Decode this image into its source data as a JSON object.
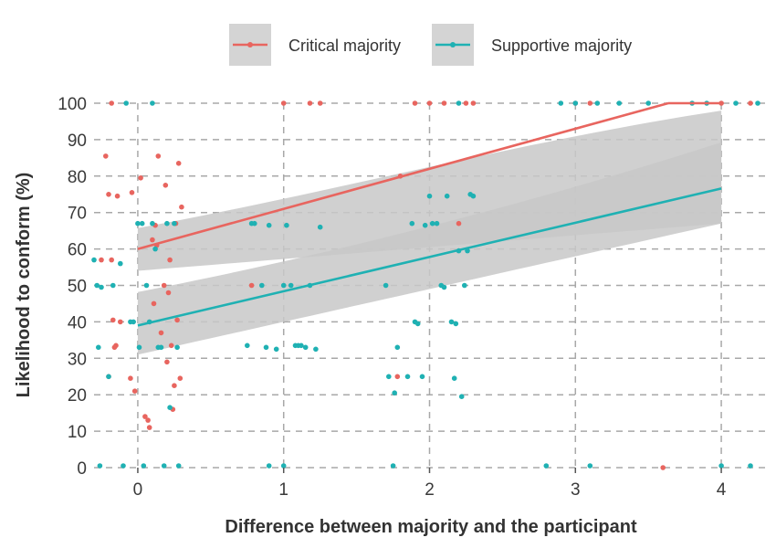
{
  "chart_data": {
    "type": "scatter",
    "title": "",
    "xlabel": "Difference between majority and the participant",
    "ylabel": "Likelihood to conform (%)",
    "xlim": [
      -0.3,
      4.3
    ],
    "ylim": [
      0,
      100
    ],
    "xticks": [
      0,
      1,
      2,
      3,
      4
    ],
    "yticks": [
      0,
      10,
      20,
      30,
      40,
      50,
      60,
      70,
      80,
      90,
      100
    ],
    "grid": true,
    "legend_position": "top",
    "series": [
      {
        "name": "Critical majority",
        "color": "#E8655F",
        "fit": {
          "intercept": 60,
          "slope": 11,
          "ci_lower": [
            54,
            67
          ],
          "ci_upper": [
            65,
            100
          ]
        },
        "points": [
          [
            -0.25,
            57
          ],
          [
            -0.22,
            85.5
          ],
          [
            -0.2,
            75
          ],
          [
            -0.18,
            57
          ],
          [
            -0.17,
            40.5
          ],
          [
            -0.15,
            33.5
          ],
          [
            -0.16,
            33
          ],
          [
            -0.14,
            74.5
          ],
          [
            -0.12,
            40
          ],
          [
            -0.2,
            25
          ],
          [
            -0.05,
            24.5
          ],
          [
            -0.04,
            75.5
          ],
          [
            -0.02,
            21
          ],
          [
            0.02,
            79.5
          ],
          [
            0.05,
            14
          ],
          [
            0.07,
            13
          ],
          [
            0.08,
            11
          ],
          [
            0.1,
            62.5
          ],
          [
            0.11,
            45
          ],
          [
            0.12,
            66.5
          ],
          [
            0.13,
            61
          ],
          [
            0.14,
            85.5
          ],
          [
            0.16,
            37
          ],
          [
            0.18,
            50
          ],
          [
            0.19,
            77.5
          ],
          [
            0.2,
            29
          ],
          [
            0.21,
            48
          ],
          [
            0.22,
            57
          ],
          [
            0.23,
            33.5
          ],
          [
            0.24,
            16
          ],
          [
            0.25,
            22.5
          ],
          [
            0.26,
            67
          ],
          [
            0.27,
            40.5
          ],
          [
            0.28,
            83.5
          ],
          [
            0.29,
            24.5
          ],
          [
            0.3,
            71.5
          ],
          [
            -0.18,
            100
          ],
          [
            0.78,
            50
          ],
          [
            1.0,
            100
          ],
          [
            1.18,
            100
          ],
          [
            1.25,
            100
          ],
          [
            1.78,
            25
          ],
          [
            1.8,
            80
          ],
          [
            1.9,
            100
          ],
          [
            2.0,
            100
          ],
          [
            2.1,
            100
          ],
          [
            2.2,
            67
          ],
          [
            2.25,
            100
          ],
          [
            2.3,
            100
          ],
          [
            3.0,
            100
          ],
          [
            3.1,
            100
          ],
          [
            3.6,
            0
          ],
          [
            4.0,
            100
          ],
          [
            4.2,
            100
          ]
        ]
      },
      {
        "name": "Supportive majority",
        "color": "#1FB1B3",
        "fit": {
          "intercept": 39,
          "slope": 9.4,
          "ci_lower": [
            31,
            67
          ],
          "ci_upper": [
            47,
            85
          ]
        },
        "points": [
          [
            -0.3,
            57
          ],
          [
            -0.28,
            50
          ],
          [
            -0.27,
            33
          ],
          [
            -0.26,
            0.5
          ],
          [
            -0.25,
            49.5
          ],
          [
            -0.2,
            25
          ],
          [
            -0.17,
            50
          ],
          [
            -0.12,
            56
          ],
          [
            -0.1,
            0.5
          ],
          [
            -0.08,
            100
          ],
          [
            -0.05,
            40
          ],
          [
            -0.03,
            40
          ],
          [
            0.0,
            67
          ],
          [
            0.01,
            33
          ],
          [
            0.03,
            67
          ],
          [
            0.04,
            0.5
          ],
          [
            0.06,
            50
          ],
          [
            0.08,
            40
          ],
          [
            0.1,
            67
          ],
          [
            0.12,
            60
          ],
          [
            0.14,
            33
          ],
          [
            0.16,
            33
          ],
          [
            0.18,
            0.5
          ],
          [
            0.2,
            67
          ],
          [
            0.22,
            16.5
          ],
          [
            0.25,
            67
          ],
          [
            0.27,
            33
          ],
          [
            0.28,
            0.5
          ],
          [
            0.1,
            100
          ],
          [
            0.75,
            33.5
          ],
          [
            0.78,
            67
          ],
          [
            0.8,
            67
          ],
          [
            0.85,
            50
          ],
          [
            0.88,
            33
          ],
          [
            0.9,
            66.5
          ],
          [
            0.95,
            32.5
          ],
          [
            1.0,
            50
          ],
          [
            1.02,
            66.5
          ],
          [
            1.05,
            50
          ],
          [
            1.08,
            33.5
          ],
          [
            1.1,
            33.5
          ],
          [
            1.12,
            33.5
          ],
          [
            1.15,
            33
          ],
          [
            1.18,
            50
          ],
          [
            1.22,
            32.5
          ],
          [
            1.25,
            66
          ],
          [
            1.0,
            0.5
          ],
          [
            0.9,
            0.5
          ],
          [
            1.7,
            50
          ],
          [
            1.72,
            25
          ],
          [
            1.75,
            0.5
          ],
          [
            1.76,
            20.5
          ],
          [
            1.78,
            33
          ],
          [
            1.85,
            25
          ],
          [
            1.88,
            67
          ],
          [
            1.9,
            40
          ],
          [
            1.92,
            39.5
          ],
          [
            1.95,
            25
          ],
          [
            1.97,
            66.5
          ],
          [
            2.0,
            74.5
          ],
          [
            2.02,
            67
          ],
          [
            2.05,
            67
          ],
          [
            2.08,
            50
          ],
          [
            2.1,
            49.5
          ],
          [
            2.12,
            74.5
          ],
          [
            2.15,
            40
          ],
          [
            2.17,
            24.5
          ],
          [
            2.18,
            39.5
          ],
          [
            2.2,
            59.5
          ],
          [
            2.22,
            19.5
          ],
          [
            2.24,
            50
          ],
          [
            2.26,
            59.5
          ],
          [
            2.28,
            75
          ],
          [
            2.3,
            74.5
          ],
          [
            2.2,
            100
          ],
          [
            2.8,
            0.5
          ],
          [
            2.9,
            100
          ],
          [
            3.0,
            100
          ],
          [
            3.1,
            0.5
          ],
          [
            3.15,
            100
          ],
          [
            3.3,
            100
          ],
          [
            3.5,
            100
          ],
          [
            3.8,
            100
          ],
          [
            3.9,
            100
          ],
          [
            4.0,
            0.5
          ],
          [
            4.1,
            100
          ],
          [
            4.2,
            0.5
          ],
          [
            4.25,
            100
          ]
        ]
      }
    ]
  }
}
